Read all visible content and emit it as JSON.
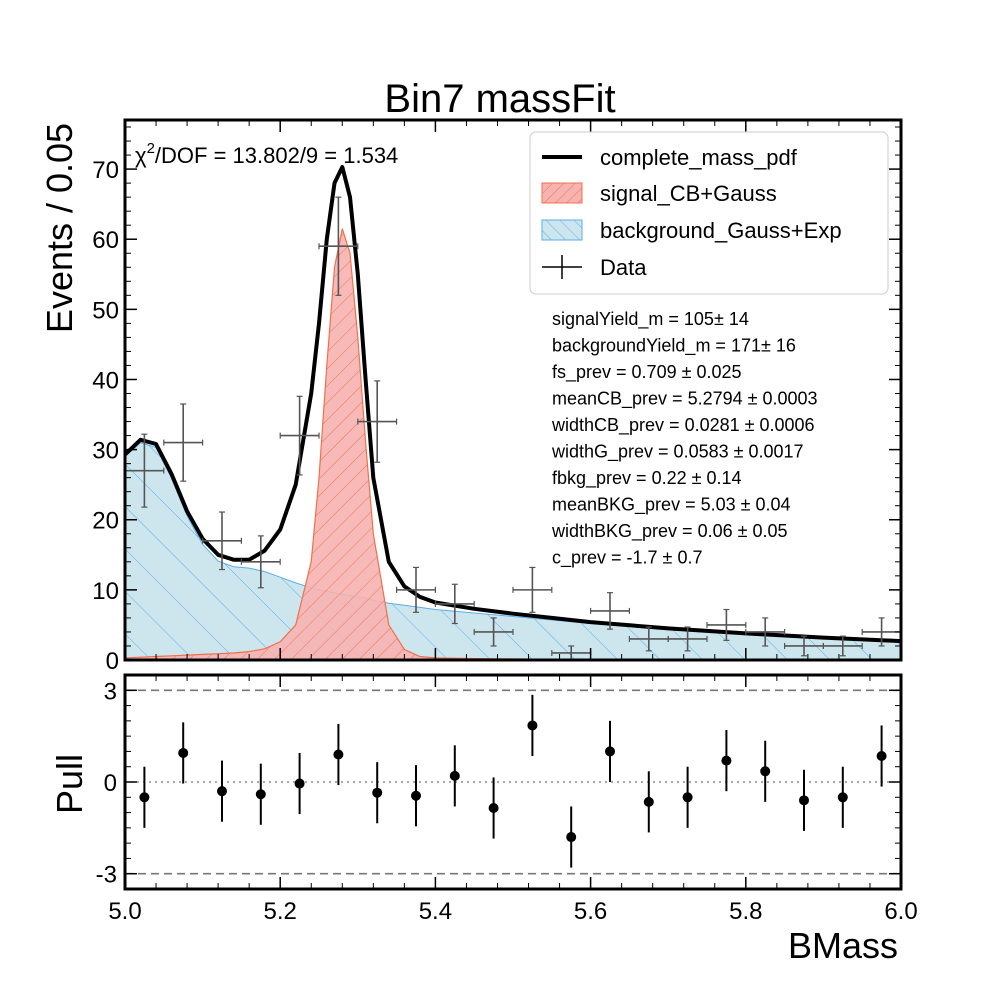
{
  "colors": {
    "total": "#000000",
    "signal_fill": "#f7b3b0",
    "signal_edge": "#f0704e",
    "background_fill": "#cde6ee",
    "background_edge": "#5aaee8",
    "data": "#555555",
    "pull_marker": "#000000",
    "dashed": "#777777"
  },
  "chart_data": [
    {
      "id": "mass_fit",
      "type": "scatter",
      "title": "Bin7 massFit",
      "xlabel": "",
      "ylabel": "Events / 0.05",
      "xlim": [
        5.0,
        6.0
      ],
      "ylim": [
        0,
        77
      ],
      "yticks": [
        0,
        10,
        20,
        30,
        40,
        50,
        60,
        70
      ],
      "grid": false,
      "legend_position": "top-right",
      "chi2_label": "χ2/DOF = 13.802/9 = 1.534",
      "chi2_prefix": "χ",
      "chi2_sup": "2",
      "chi2_rest": "/DOF = 13.802/9 = 1.534",
      "legend": [
        {
          "key": "total",
          "label": "complete_mass_pdf"
        },
        {
          "key": "signal",
          "label": "signal_CB+Gauss"
        },
        {
          "key": "background",
          "label": "background_Gauss+Exp"
        },
        {
          "key": "data",
          "label": "Data"
        }
      ],
      "parameters": [
        "signalYield_m = 105± 14",
        "backgroundYield_m = 171± 16",
        "fs_prev = 0.709 ± 0.025",
        "meanCB_prev = 5.2794 ± 0.0003",
        "widthCB_prev = 0.0281 ± 0.0006",
        "widthG_prev = 0.0583 ± 0.0017",
        "fbkg_prev = 0.22 ± 0.14",
        "meanBKG_prev = 5.03 ± 0.04",
        "widthBKG_prev = 0.06 ± 0.05",
        "c_prev = -1.7 ± 0.7"
      ],
      "data_points": {
        "x": [
          5.025,
          5.075,
          5.125,
          5.175,
          5.225,
          5.275,
          5.325,
          5.375,
          5.425,
          5.475,
          5.525,
          5.575,
          5.625,
          5.675,
          5.725,
          5.775,
          5.825,
          5.875,
          5.925,
          5.975
        ],
        "y": [
          27,
          31,
          17,
          14,
          32,
          59,
          34,
          10,
          8,
          4,
          10,
          1,
          7,
          3,
          3,
          5,
          4,
          2,
          2,
          4
        ],
        "yerr": [
          5.2,
          5.5,
          4.1,
          3.7,
          5.6,
          7.0,
          5.8,
          3.2,
          2.8,
          2.0,
          3.2,
          1.0,
          2.6,
          1.7,
          1.7,
          2.2,
          2.0,
          1.4,
          1.4,
          2.0
        ],
        "xerr": 0.025
      },
      "curves": {
        "x": [
          5.0,
          5.02,
          5.04,
          5.06,
          5.08,
          5.1,
          5.12,
          5.14,
          5.16,
          5.18,
          5.2,
          5.22,
          5.24,
          5.25,
          5.26,
          5.27,
          5.28,
          5.29,
          5.3,
          5.31,
          5.32,
          5.34,
          5.36,
          5.38,
          5.4,
          5.45,
          5.5,
          5.55,
          5.6,
          5.7,
          5.8,
          5.9,
          6.0
        ],
        "total": [
          29.3,
          31.4,
          30.8,
          26.5,
          21.2,
          17.3,
          15.0,
          14.3,
          14.3,
          15.6,
          18.6,
          25.0,
          38.0,
          48.0,
          60.0,
          68.0,
          70.3,
          66.0,
          55.0,
          40.0,
          26.0,
          14.0,
          10.5,
          9.0,
          8.2,
          7.3,
          6.6,
          6.0,
          5.4,
          4.5,
          3.8,
          3.2,
          2.7
        ],
        "signal": [
          0.3,
          0.4,
          0.5,
          0.6,
          0.7,
          0.8,
          0.9,
          1.0,
          1.2,
          1.6,
          2.6,
          5.0,
          14.0,
          26.0,
          42.0,
          56.0,
          61.5,
          58.0,
          46.0,
          31.0,
          18.0,
          5.0,
          1.5,
          0.5,
          0.3,
          0.2,
          0.15,
          0.1,
          0.1,
          0.1,
          0.05,
          0.05,
          0.05
        ],
        "background": [
          29.0,
          31.0,
          30.3,
          25.9,
          20.5,
          16.5,
          14.1,
          13.3,
          13.1,
          12.6,
          11.8,
          11.0,
          10.3,
          10.0,
          9.8,
          9.6,
          9.4,
          9.2,
          9.0,
          8.8,
          8.5,
          8.1,
          7.8,
          7.5,
          7.2,
          6.7,
          6.2,
          5.7,
          5.2,
          4.4,
          3.7,
          3.1,
          2.6
        ]
      }
    },
    {
      "id": "pull",
      "type": "scatter",
      "xlabel": "BMass",
      "ylabel": "Pull",
      "xlim": [
        5.0,
        6.0
      ],
      "ylim": [
        -3.5,
        3.5
      ],
      "yticks": [
        -3,
        0,
        3
      ],
      "xticks": [
        5.0,
        5.2,
        5.4,
        5.6,
        5.8,
        6.0
      ],
      "reference_lines": [
        -3,
        0,
        3
      ],
      "x": [
        5.025,
        5.075,
        5.125,
        5.175,
        5.225,
        5.275,
        5.325,
        5.375,
        5.425,
        5.475,
        5.525,
        5.575,
        5.625,
        5.675,
        5.725,
        5.775,
        5.825,
        5.875,
        5.925,
        5.975
      ],
      "y": [
        -0.5,
        0.95,
        -0.3,
        -0.4,
        -0.05,
        0.9,
        -0.35,
        -0.45,
        0.2,
        -0.85,
        1.85,
        -1.8,
        1.0,
        -0.65,
        -0.5,
        0.7,
        0.35,
        -0.6,
        -0.5,
        0.85
      ],
      "yerr": 1.0
    }
  ]
}
